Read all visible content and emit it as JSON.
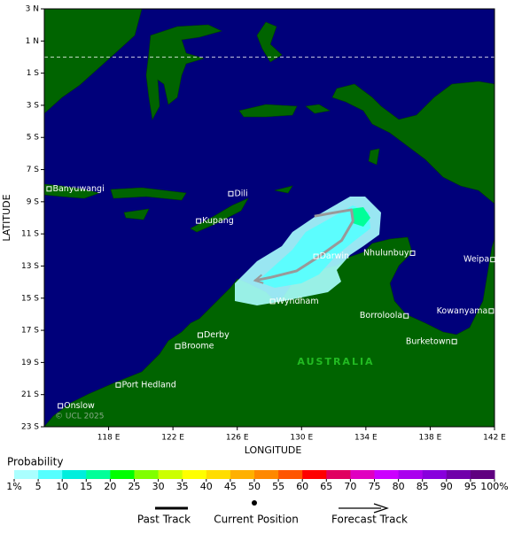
{
  "map": {
    "xlabel": "LONGITUDE",
    "ylabel": "LATITUDE",
    "xlim": [
      114,
      142
    ],
    "ylim": [
      -23,
      3
    ],
    "xticks": [
      {
        "value": 118,
        "label": "118 E"
      },
      {
        "value": 122,
        "label": "122 E"
      },
      {
        "value": 126,
        "label": "126 E"
      },
      {
        "value": 130,
        "label": "130 E"
      },
      {
        "value": 134,
        "label": "134 E"
      },
      {
        "value": 138,
        "label": "138 E"
      },
      {
        "value": 142,
        "label": "142 E"
      }
    ],
    "yticks": [
      {
        "value": 3,
        "label": "3 N"
      },
      {
        "value": 1,
        "label": "1 N"
      },
      {
        "value": -1,
        "label": "1 S"
      },
      {
        "value": -3,
        "label": "3 S"
      },
      {
        "value": -5,
        "label": "5 S"
      },
      {
        "value": -7,
        "label": "7 S"
      },
      {
        "value": -9,
        "label": "9 S"
      },
      {
        "value": -11,
        "label": "11 S"
      },
      {
        "value": -13,
        "label": "13 S"
      },
      {
        "value": -15,
        "label": "15 S"
      },
      {
        "value": -17,
        "label": "17 S"
      },
      {
        "value": -19,
        "label": "19 S"
      },
      {
        "value": -21,
        "label": "21 S"
      },
      {
        "value": -23,
        "label": "23 S"
      }
    ],
    "land_label": "AUSTRALIA",
    "copyright": "© UCL 2025",
    "places": [
      {
        "name": "Banyuwangi",
        "lon": 114.3,
        "lat": -8.2
      },
      {
        "name": "Dili",
        "lon": 125.6,
        "lat": -8.5
      },
      {
        "name": "Kupang",
        "lon": 123.6,
        "lat": -10.2
      },
      {
        "name": "Darwin",
        "lon": 130.9,
        "lat": -12.4
      },
      {
        "name": "Nhulunbuy",
        "lon": 136.9,
        "lat": -12.2
      },
      {
        "name": "Weipa",
        "lon": 141.9,
        "lat": -12.6
      },
      {
        "name": "Wyndham",
        "lon": 128.2,
        "lat": -15.2
      },
      {
        "name": "Borroloola",
        "lon": 136.5,
        "lat": -16.1
      },
      {
        "name": "Kowanyama",
        "lon": 141.8,
        "lat": -15.8
      },
      {
        "name": "Derby",
        "lon": 123.7,
        "lat": -17.3
      },
      {
        "name": "Broome",
        "lon": 122.3,
        "lat": -18.0
      },
      {
        "name": "Burketown",
        "lon": 139.5,
        "lat": -17.7
      },
      {
        "name": "Port Hedland",
        "lon": 118.6,
        "lat": -20.4
      },
      {
        "name": "Onslow",
        "lon": 115.0,
        "lat": -21.7
      }
    ],
    "track": {
      "color": "#999999",
      "lon": [
        130.8,
        131.9,
        133.1,
        133.2,
        132.5,
        131.1,
        129.7,
        128.1,
        127.1
      ],
      "lat": [
        -9.9,
        -9.7,
        -9.5,
        -10.2,
        -11.4,
        -12.4,
        -13.3,
        -13.7,
        -13.9
      ]
    }
  },
  "probability": {
    "title": "Probability",
    "ticks": [
      {
        "value": 1,
        "label": "1%"
      },
      5,
      10,
      15,
      20,
      25,
      30,
      35,
      40,
      45,
      50,
      55,
      60,
      65,
      70,
      75,
      80,
      85,
      90,
      95,
      {
        "value": 100,
        "label": "100%"
      }
    ],
    "colors": [
      "#aaffff",
      "#55ffff",
      "#00eedd",
      "#00ff99",
      "#00ff00",
      "#80ff00",
      "#ccff00",
      "#ffff00",
      "#ffdd00",
      "#ffb000",
      "#ff8800",
      "#ff5500",
      "#ff0000",
      "#e00060",
      "#e000c0",
      "#cc00ff",
      "#aa00ee",
      "#8800dd",
      "#7000aa",
      "#600080"
    ]
  },
  "legend": {
    "past_track": "Past Track",
    "current_position": "Current Position",
    "forecast_track": "Forecast Track"
  }
}
